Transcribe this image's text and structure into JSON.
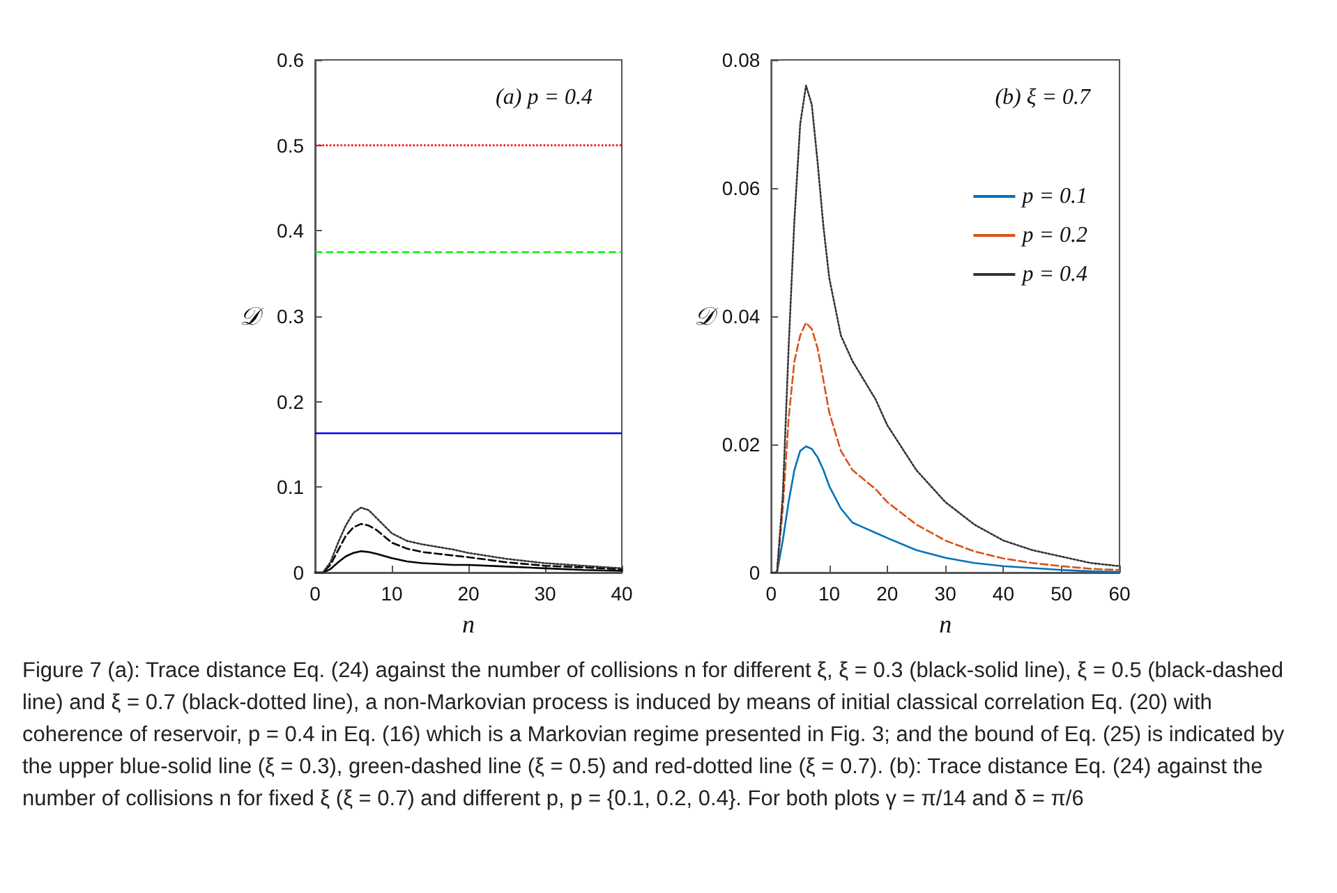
{
  "chart_data": [
    {
      "type": "line",
      "title": "(a) p = 0.4",
      "xlabel": "n",
      "ylabel": "𝒟",
      "xlim": [
        0,
        40
      ],
      "xticks": [
        0,
        10,
        20,
        30,
        40
      ],
      "ylim": [
        0,
        0.6
      ],
      "yticks": [
        0,
        0.1,
        0.2,
        0.3,
        0.4,
        0.5,
        0.6
      ],
      "grid": false,
      "legend": false,
      "marker": "none",
      "x": [
        0,
        1,
        2,
        3,
        4,
        5,
        6,
        7,
        8,
        10,
        12,
        14,
        16,
        18,
        20,
        25,
        30,
        35,
        40
      ],
      "series": [
        {
          "color": "#000000",
          "line_style": "solid",
          "values": [
            0,
            0,
            0.004,
            0.012,
            0.019,
            0.023,
            0.025,
            0.024,
            0.022,
            0.017,
            0.013,
            0.011,
            0.01,
            0.009,
            0.009,
            0.007,
            0.005,
            0.003,
            0.002
          ]
        },
        {
          "color": "#000000",
          "line_style": "dashed",
          "values": [
            0,
            0,
            0.009,
            0.026,
            0.043,
            0.053,
            0.057,
            0.055,
            0.05,
            0.035,
            0.028,
            0.024,
            0.022,
            0.02,
            0.018,
            0.012,
            0.008,
            0.006,
            0.004
          ]
        },
        {
          "color": "#333333",
          "line_style": "dotted",
          "values": [
            0,
            0,
            0.012,
            0.035,
            0.055,
            0.07,
            0.076,
            0.073,
            0.064,
            0.046,
            0.037,
            0.033,
            0.03,
            0.027,
            0.023,
            0.016,
            0.011,
            0.008,
            0.005
          ]
        }
      ],
      "ref_lines": [
        {
          "axis": "y",
          "value": 0.163,
          "color": "#0000ff",
          "line_style": "solid"
        },
        {
          "axis": "y",
          "value": 0.375,
          "color": "#00ee00",
          "line_style": "dashed"
        },
        {
          "axis": "y",
          "value": 0.5,
          "color": "#ff0000",
          "line_style": "dotted"
        }
      ]
    },
    {
      "type": "line",
      "title": "(b) ξ = 0.7",
      "xlabel": "n",
      "ylabel": "𝒟",
      "xlim": [
        0,
        60
      ],
      "xticks": [
        0,
        10,
        20,
        30,
        40,
        50,
        60
      ],
      "ylim": [
        0,
        0.08
      ],
      "yticks": [
        0,
        0.02,
        0.04,
        0.06,
        0.08
      ],
      "grid": false,
      "legend": "top right",
      "marker": "none",
      "x": [
        0,
        1,
        2,
        3,
        4,
        5,
        6,
        7,
        8,
        9,
        10,
        12,
        14,
        16,
        18,
        20,
        25,
        30,
        35,
        40,
        45,
        50,
        55,
        60
      ],
      "series": [
        {
          "name": "p = 0.1",
          "color": "#0072bd",
          "line_style": "solid",
          "values": [
            0,
            0,
            0.005,
            0.011,
            0.016,
            0.019,
            0.0197,
            0.0193,
            0.018,
            0.016,
            0.0135,
            0.01,
            0.0078,
            0.007,
            0.0062,
            0.0054,
            0.0035,
            0.0023,
            0.0015,
            0.001,
            0.0007,
            0.0004,
            0.0002,
            0.0001
          ]
        },
        {
          "name": "p = 0.2",
          "color": "#d95319",
          "line_style": "dashed",
          "values": [
            0,
            0,
            0.01,
            0.024,
            0.033,
            0.037,
            0.039,
            0.038,
            0.035,
            0.03,
            0.025,
            0.019,
            0.016,
            0.0145,
            0.013,
            0.011,
            0.0075,
            0.005,
            0.0033,
            0.0022,
            0.0015,
            0.001,
            0.0006,
            0.0004
          ]
        },
        {
          "name": "p = 0.4",
          "color": "#333333",
          "line_style": "dotted",
          "values": [
            0,
            0,
            0.012,
            0.035,
            0.055,
            0.07,
            0.076,
            0.073,
            0.064,
            0.054,
            0.046,
            0.037,
            0.033,
            0.03,
            0.027,
            0.023,
            0.016,
            0.011,
            0.0075,
            0.005,
            0.0035,
            0.0025,
            0.0015,
            0.001
          ]
        }
      ],
      "annotations": [
        "Figure 7 (a): Trace distance Eq. (24) against the number of collisions n for different ξ, ξ = 0.3 (black-solid line), ξ = 0.5 (black-dashed line) and ξ = 0.7 (black-dotted line), a non-Markovian process is induced by means of initial classical correlation Eq. (20) with coherence of reservoir, p = 0.4 in Eq. (16) which is a Markovian regime presented in Fig. 3; and the bound of Eq. (25) is indicated by the upper blue-solid line (ξ = 0.3), green-dashed line (ξ = 0.5) and red-dotted line (ξ = 0.7). (b): Trace distance Eq. (24) against the number of collisions n for fixed ξ (ξ = 0.7) and different p, p = {0.1, 0.2, 0.4}. For both plots γ = π/14 and δ = π/6"
      ]
    }
  ]
}
